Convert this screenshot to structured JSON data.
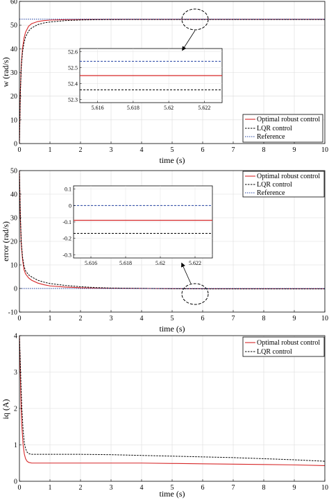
{
  "chart_data": [
    {
      "type": "line",
      "xlabel": "time (s)",
      "ylabel": "w (rad/s)",
      "xlim": [
        0,
        10
      ],
      "ylim": [
        0,
        60
      ],
      "xticks": [
        "0",
        "1",
        "2",
        "3",
        "4",
        "5",
        "6",
        "7",
        "8",
        "9",
        "10"
      ],
      "yticks": [
        "0",
        "10",
        "20",
        "30",
        "40",
        "50",
        "60"
      ],
      "grid": true,
      "legend_position": "bottom-right",
      "legend": [
        "Optimal robust control",
        "LQR control",
        "Reference"
      ],
      "series": [
        {
          "name": "Optimal robust control",
          "color": "#d62728",
          "style": "solid",
          "x": [
            0,
            0.03,
            0.06,
            0.1,
            0.15,
            0.2,
            0.3,
            0.4,
            0.6,
            0.8,
            1,
            1.5,
            2,
            2.5,
            3,
            4,
            5,
            6,
            8,
            10
          ],
          "y": [
            0,
            22,
            33,
            40,
            44.5,
            47,
            49.5,
            50.6,
            51.5,
            51.9,
            52.1,
            52.3,
            52.38,
            52.41,
            52.43,
            52.44,
            52.45,
            52.45,
            52.45,
            52.45
          ]
        },
        {
          "name": "LQR control",
          "color": "#000000",
          "style": "dashed",
          "x": [
            0,
            0.03,
            0.06,
            0.1,
            0.15,
            0.2,
            0.3,
            0.4,
            0.6,
            0.8,
            1,
            1.5,
            2,
            2.5,
            3,
            4,
            5,
            6,
            8,
            10
          ],
          "y": [
            0,
            21,
            32,
            38.5,
            42.5,
            45,
            47.5,
            48.8,
            50.2,
            50.9,
            51.3,
            51.9,
            52.15,
            52.27,
            52.33,
            52.35,
            52.35,
            52.35,
            52.35,
            52.35
          ]
        },
        {
          "name": "Reference",
          "color": "#1f3fa0",
          "style": "dotted",
          "x": [
            0,
            10
          ],
          "y": [
            52.5,
            52.5
          ]
        }
      ],
      "inset": {
        "xlim": [
          5.615,
          5.623
        ],
        "ylim": [
          52.28,
          52.62
        ],
        "xticks": [
          "5.616",
          "5.618",
          "5.62",
          "5.622"
        ],
        "yticks": [
          "52.3",
          "52.4",
          "52.5",
          "52.6"
        ],
        "series": [
          {
            "name": "Optimal robust control",
            "y": 52.45
          },
          {
            "name": "LQR control",
            "y": 52.36
          },
          {
            "name": "Reference",
            "y": 52.54
          }
        ]
      }
    },
    {
      "type": "line",
      "xlabel": "time (s)",
      "ylabel": "error (rad/s)",
      "xlim": [
        0,
        10
      ],
      "ylim": [
        -10,
        50
      ],
      "xticks": [
        "0",
        "1",
        "2",
        "3",
        "4",
        "5",
        "6",
        "7",
        "8",
        "9",
        "10"
      ],
      "yticks": [
        "-10",
        "0",
        "10",
        "20",
        "30",
        "40",
        "50"
      ],
      "grid": true,
      "legend_position": "top-right",
      "legend": [
        "Optimal robust control",
        "LQR control",
        "Reference"
      ],
      "series": [
        {
          "name": "Optimal robust control",
          "color": "#d62728",
          "style": "solid",
          "x": [
            0,
            0.03,
            0.06,
            0.1,
            0.15,
            0.2,
            0.3,
            0.4,
            0.6,
            0.8,
            1,
            1.5,
            2,
            2.5,
            3,
            4,
            5,
            6,
            8,
            10
          ],
          "y": [
            50,
            30,
            19,
            12.5,
            8,
            6.2,
            4.5,
            3.5,
            2.3,
            1.6,
            1.1,
            0.6,
            0.3,
            0.15,
            0.08,
            0.02,
            -0.05,
            -0.08,
            -0.08,
            -0.08
          ]
        },
        {
          "name": "LQR control",
          "color": "#000000",
          "style": "dashed",
          "x": [
            0,
            0.03,
            0.06,
            0.1,
            0.15,
            0.2,
            0.3,
            0.4,
            0.6,
            0.8,
            1,
            1.5,
            2,
            2.5,
            3,
            4,
            5,
            6,
            8,
            10
          ],
          "y": [
            50,
            31,
            20,
            13.5,
            9.5,
            7.5,
            5.8,
            4.9,
            3.5,
            2.7,
            2.1,
            1.3,
            0.75,
            0.4,
            0.2,
            0.05,
            -0.1,
            -0.17,
            -0.17,
            -0.17
          ]
        },
        {
          "name": "Reference",
          "color": "#1f3fa0",
          "style": "dotted",
          "x": [
            0,
            10
          ],
          "y": [
            0,
            0
          ]
        }
      ],
      "inset": {
        "xlim": [
          5.615,
          5.623
        ],
        "ylim": [
          -0.32,
          0.12
        ],
        "xticks": [
          "5.616",
          "5.618",
          "5.62",
          "5.622"
        ],
        "yticks": [
          "-0.3",
          "-0.2",
          "-0.1",
          "0",
          "0.1"
        ],
        "series": [
          {
            "name": "Optimal robust control",
            "y": -0.09
          },
          {
            "name": "LQR control",
            "y": -0.17
          },
          {
            "name": "Reference",
            "y": 0
          }
        ]
      }
    },
    {
      "type": "line",
      "xlabel": "time (s)",
      "ylabel": "iq (A)",
      "xlim": [
        0,
        10
      ],
      "ylim": [
        0,
        4
      ],
      "xticks": [
        "0",
        "1",
        "2",
        "3",
        "4",
        "5",
        "6",
        "7",
        "8",
        "9",
        "10"
      ],
      "yticks": [
        "0",
        "1",
        "2",
        "3",
        "4"
      ],
      "grid": true,
      "legend_position": "top-right",
      "legend": [
        "Optimal robust control",
        "LQR control"
      ],
      "series": [
        {
          "name": "Optimal robust control",
          "color": "#d62728",
          "style": "solid",
          "x": [
            0,
            0.02,
            0.05,
            0.08,
            0.12,
            0.16,
            0.2,
            0.25,
            0.3,
            0.4,
            0.5,
            1,
            2,
            3,
            4,
            5,
            6,
            7,
            8,
            9,
            10
          ],
          "y": [
            4.0,
            3.3,
            2.2,
            1.5,
            1.0,
            0.75,
            0.62,
            0.55,
            0.52,
            0.5,
            0.5,
            0.5,
            0.5,
            0.5,
            0.5,
            0.49,
            0.48,
            0.47,
            0.46,
            0.45,
            0.43
          ]
        },
        {
          "name": "LQR control",
          "color": "#000000",
          "style": "dashed",
          "x": [
            0,
            0.02,
            0.05,
            0.08,
            0.12,
            0.16,
            0.2,
            0.25,
            0.3,
            0.4,
            0.5,
            1,
            2,
            3,
            4,
            5,
            6,
            7,
            8,
            9,
            10
          ],
          "y": [
            4.0,
            3.5,
            2.7,
            2.0,
            1.4,
            1.05,
            0.9,
            0.8,
            0.76,
            0.74,
            0.74,
            0.74,
            0.74,
            0.73,
            0.71,
            0.69,
            0.67,
            0.65,
            0.62,
            0.59,
            0.55
          ]
        }
      ]
    }
  ]
}
